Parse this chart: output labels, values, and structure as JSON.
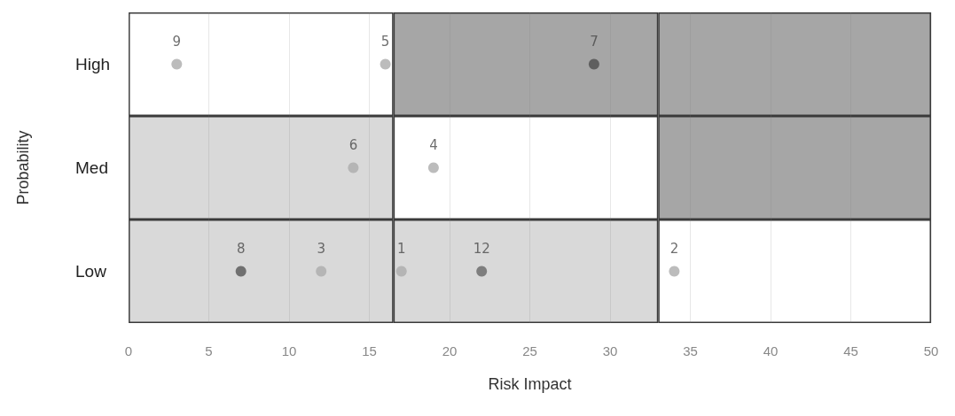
{
  "chart_data": {
    "type": "scatter",
    "orientation": "horizontal",
    "stacked": true,
    "xlabel": "Risk Impact",
    "ylabel": "Probability",
    "categories": [
      "High",
      "Med",
      "Low"
    ],
    "series": [
      {
        "type": "bar",
        "values": [
          16.5,
          16.5,
          16.5
        ],
        "colors": [
          "#ffffff",
          "#d9d9d9",
          "#d9d9d9"
        ]
      },
      {
        "type": "bar",
        "values": [
          16.5,
          16.5,
          16.5
        ],
        "colors": [
          "#a6a6a6",
          "#ffffff",
          "#d9d9d9"
        ]
      },
      {
        "type": "bar",
        "values": [
          17,
          17,
          17
        ],
        "colors": [
          "#a6a6a6",
          "#a6a6a6",
          "#ffffff"
        ]
      },
      {
        "x": [
          "High",
          "High",
          "High",
          "Med",
          "Med",
          "Low",
          "Low",
          "Low",
          "Low",
          "Low"
        ],
        "values": [
          3,
          16,
          29,
          14,
          19,
          7,
          12,
          17,
          22,
          34
        ],
        "colors": [
          "#ababab",
          "#ababab",
          "#4d4d4d",
          "#ababab",
          "#ababab",
          "#555555",
          "#ababab",
          "#ababab",
          "#666666",
          "#ababab"
        ]
      }
    ],
    "annotations": [
      {
        "text": "9",
        "x": 3,
        "y": "High"
      },
      {
        "text": "5",
        "x": 16,
        "y": "High"
      },
      {
        "text": "7",
        "x": 29,
        "y": "High"
      },
      {
        "text": "6",
        "x": 14,
        "y": "Med"
      },
      {
        "text": "4",
        "x": 19,
        "y": "Med"
      },
      {
        "text": "8",
        "x": 7,
        "y": "Low"
      },
      {
        "text": "3",
        "x": 12,
        "y": "Low"
      },
      {
        "text": "1",
        "x": 17,
        "y": "Low"
      },
      {
        "text": "12",
        "x": 22,
        "y": "Low"
      },
      {
        "text": "2",
        "x": 34,
        "y": "Low"
      }
    ],
    "xlim": [
      0,
      50
    ],
    "xticks": [
      0,
      5,
      10,
      15,
      20,
      25,
      30,
      35,
      40,
      45,
      50
    ],
    "grid": "x",
    "marker": "circle"
  }
}
